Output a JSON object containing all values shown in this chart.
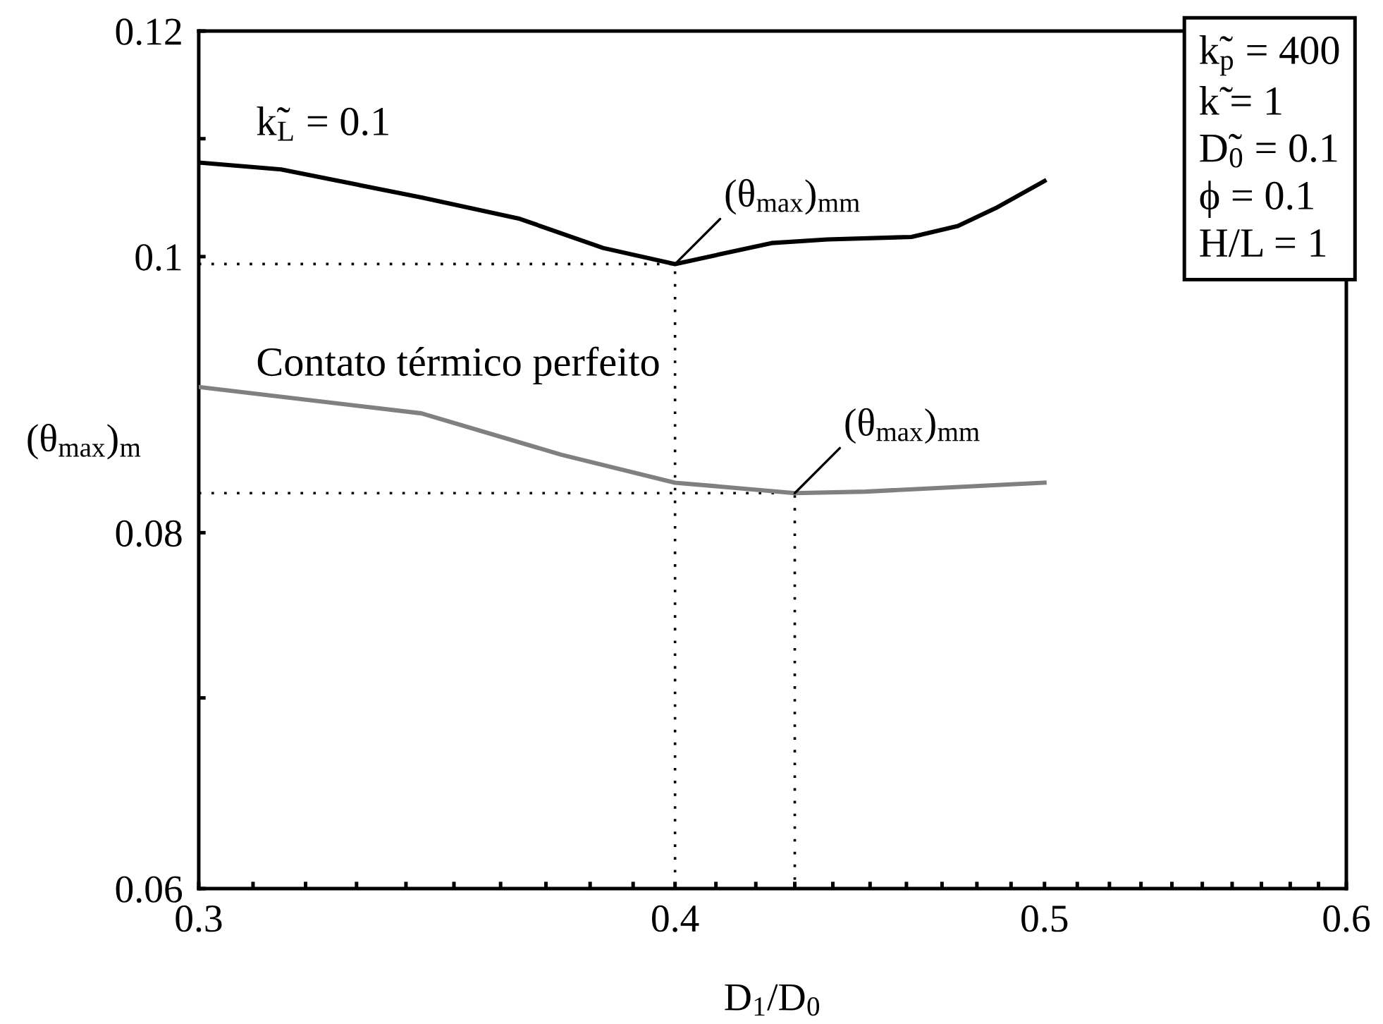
{
  "chart_data": {
    "type": "line",
    "xlabel": "D$_{1}$/D$_{0}$",
    "ylabel": "(θ$_{max}$)$_{m}$",
    "log": "xy",
    "xlim": [
      0.3,
      0.6
    ],
    "ylim": [
      0.06,
      0.12
    ],
    "xticks": [
      0.3,
      {
        "value": 0.31,
        "label": null
      },
      {
        "value": 0.32,
        "label": null
      },
      {
        "value": 0.33,
        "label": null
      },
      {
        "value": 0.34,
        "label": null
      },
      {
        "value": 0.35,
        "label": null
      },
      {
        "value": 0.36,
        "label": null
      },
      {
        "value": 0.37,
        "label": null
      },
      {
        "value": 0.38,
        "label": null
      },
      {
        "value": 0.39,
        "label": null
      },
      0.4,
      {
        "value": 0.41,
        "label": null
      },
      {
        "value": 0.42,
        "label": null
      },
      {
        "value": 0.43,
        "label": null
      },
      {
        "value": 0.44,
        "label": null
      },
      {
        "value": 0.45,
        "label": null
      },
      {
        "value": 0.46,
        "label": null
      },
      {
        "value": 0.47,
        "label": null
      },
      {
        "value": 0.48,
        "label": null
      },
      {
        "value": 0.49,
        "label": null
      },
      0.5,
      {
        "value": 0.51,
        "label": null
      },
      {
        "value": 0.52,
        "label": null
      },
      {
        "value": 0.53,
        "label": null
      },
      {
        "value": 0.54,
        "label": null
      },
      {
        "value": 0.55,
        "label": null
      },
      {
        "value": 0.56,
        "label": null
      },
      {
        "value": 0.57,
        "label": null
      },
      {
        "value": 0.58,
        "label": null
      },
      {
        "value": 0.59,
        "label": null
      },
      0.6
    ],
    "yticks": [
      0.06,
      {
        "value": 0.07,
        "label": null
      },
      0.08,
      0.1,
      {
        "value": 0.11,
        "label": null
      },
      0.12
    ],
    "marker": "none",
    "series": [
      {
        "color": "#000000",
        "x": [
          0.3,
          0.3153,
          0.3432,
          0.3642,
          0.383,
          0.4,
          0.424,
          0.4386,
          0.4614,
          0.4745,
          0.4855,
          0.5
        ],
        "values": [
          0.1079,
          0.1073,
          0.1049,
          0.1031,
          0.1007,
          0.0994,
          0.1011,
          0.1014,
          0.1016,
          0.1025,
          0.104,
          0.1063
        ]
      },
      {
        "color": "#808080",
        "x": [
          0.3,
          0.3432,
          0.3735,
          0.4,
          0.43,
          0.4487,
          0.5
        ],
        "values": [
          0.09,
          0.0881,
          0.0852,
          0.0833,
          0.0826,
          0.0827,
          0.0833
        ]
      },
      {
        "color": "#000000",
        "line_style": "dotted",
        "x": [
          0.3,
          0.4,
          0.4
        ],
        "values": [
          0.0994,
          0.0994,
          0.06
        ]
      },
      {
        "color": "#000000",
        "line_style": "dotted",
        "x": [
          0.3,
          0.43,
          0.43
        ],
        "values": [
          0.0826,
          0.0826,
          0.06
        ]
      }
    ],
    "annotations": [
      "k̃$_{L}$ = 0.1",
      "Contato térmico perfeito",
      {
        "text": "(θ$_{max}$)$_{mm}$",
        "x": 0.4,
        "y": 0.0994
      },
      {
        "text": "(θ$_{max}$)$_{mm}$",
        "x": 0.43,
        "y": 0.0826
      },
      "k̃$_{p}$ = 400\nk̃ = 1\nD̃$_{0}$ = 0.1\nϕ = 0.1\nH/L = 1"
    ]
  }
}
